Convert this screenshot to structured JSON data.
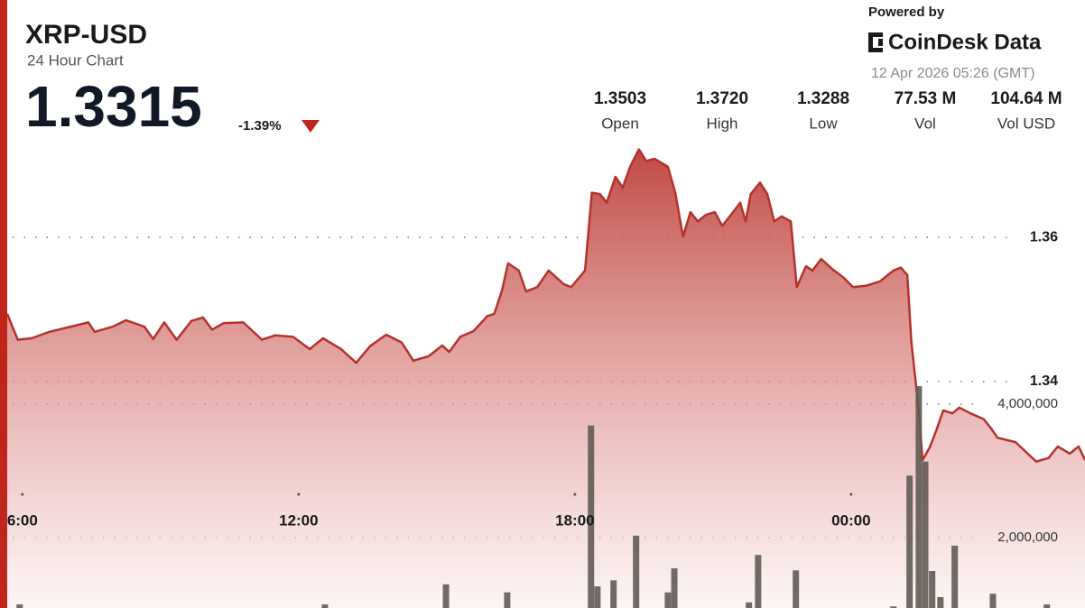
{
  "header": {
    "title": "XRP-USD",
    "subtitle": "24 Hour Chart",
    "price": "1.3315",
    "change": "-1.39%",
    "powered_by": "Powered by",
    "brand": "CoinDesk Data",
    "timestamp": "12 Apr 2026 05:26 (GMT)",
    "stats": [
      {
        "value": "1.3503",
        "label": "Open"
      },
      {
        "value": "1.3720",
        "label": "High"
      },
      {
        "value": "1.3288",
        "label": "Low"
      },
      {
        "value": "77.53 M",
        "label": "Vol"
      },
      {
        "value": "104.64 M",
        "label": "Vol USD"
      }
    ]
  },
  "chart_data": {
    "type": "area",
    "xlim": [
      5.67,
      29.08
    ],
    "xticks": [
      {
        "value": 6,
        "label": "6:00"
      },
      {
        "value": 12,
        "label": "12:00"
      },
      {
        "value": 18,
        "label": "18:00"
      },
      {
        "value": 24,
        "label": "00:00"
      }
    ],
    "ylim": [
      1.3086,
      1.3729
    ],
    "yticks": [
      1.36,
      1.34
    ],
    "y2lim": [
      945946,
      7891892
    ],
    "y2ticks": [
      {
        "value": 4000000,
        "label": "4,000,000"
      },
      {
        "value": 2000000,
        "label": "2,000,000"
      }
    ],
    "grid": true,
    "series": [
      {
        "type": "area",
        "color": "#b5312c",
        "x": [
          5.67,
          5.9,
          6.2,
          6.59,
          6.98,
          7.43,
          7.57,
          7.96,
          8.25,
          8.65,
          8.84,
          9.08,
          9.35,
          9.67,
          9.92,
          10.12,
          10.37,
          10.8,
          11.2,
          11.49,
          11.88,
          12.24,
          12.53,
          12.92,
          13.25,
          13.55,
          13.9,
          14.24,
          14.49,
          14.82,
          15.12,
          15.27,
          15.51,
          15.8,
          16.1,
          16.25,
          16.41,
          16.55,
          16.78,
          16.94,
          17.18,
          17.43,
          17.76,
          17.92,
          18.22,
          18.37,
          18.55,
          18.69,
          18.88,
          19.04,
          19.2,
          19.39,
          19.55,
          19.73,
          20.02,
          20.18,
          20.35,
          20.51,
          20.67,
          20.84,
          21.04,
          21.2,
          21.39,
          21.59,
          21.71,
          21.82,
          22.02,
          22.18,
          22.33,
          22.49,
          22.69,
          22.82,
          23.02,
          23.16,
          23.35,
          23.59,
          23.84,
          24.04,
          24.33,
          24.63,
          24.92,
          25.08,
          25.22,
          25.31,
          25.47,
          25.55,
          25.71,
          25.86,
          26.0,
          26.2,
          26.35,
          26.59,
          26.88,
          27.04,
          27.18,
          27.57,
          28.02,
          28.29,
          28.49,
          28.75,
          28.94,
          29.08
        ],
        "values": [
          1.3494,
          1.3458,
          1.346,
          1.3469,
          1.3475,
          1.3482,
          1.3469,
          1.3476,
          1.3485,
          1.3476,
          1.3459,
          1.3482,
          1.3458,
          1.3484,
          1.3489,
          1.3472,
          1.3481,
          1.3482,
          1.3458,
          1.3464,
          1.3462,
          1.3445,
          1.346,
          1.3445,
          1.3426,
          1.3449,
          1.3465,
          1.3454,
          1.3429,
          1.3435,
          1.345,
          1.3441,
          1.3462,
          1.347,
          1.3491,
          1.3494,
          1.3525,
          1.3564,
          1.3554,
          1.3525,
          1.3531,
          1.3554,
          1.3535,
          1.3531,
          1.3554,
          1.3662,
          1.366,
          1.3648,
          1.3684,
          1.3669,
          1.3698,
          1.3722,
          1.3706,
          1.3709,
          1.3698,
          1.3662,
          1.3601,
          1.3635,
          1.3622,
          1.3631,
          1.3635,
          1.3616,
          1.3631,
          1.3648,
          1.3622,
          1.366,
          1.3676,
          1.366,
          1.3622,
          1.3629,
          1.3622,
          1.3531,
          1.356,
          1.3554,
          1.357,
          1.3556,
          1.3544,
          1.3531,
          1.3533,
          1.3539,
          1.3554,
          1.3558,
          1.3548,
          1.3454,
          1.336,
          1.3291,
          1.3309,
          1.3334,
          1.336,
          1.3356,
          1.3364,
          1.3356,
          1.3348,
          1.3335,
          1.3322,
          1.3316,
          1.3289,
          1.3294,
          1.331,
          1.33,
          1.331,
          1.3291
        ]
      },
      {
        "type": "bar",
        "axis": "y2",
        "color": "#615b55",
        "x": [
          5.94,
          12.57,
          15.2,
          16.53,
          18.35,
          18.49,
          18.84,
          19.33,
          20.02,
          20.16,
          21.78,
          21.98,
          22.8,
          24.92,
          25.27,
          25.47,
          25.61,
          25.76,
          25.94,
          26.25,
          27.08,
          28.25
        ],
        "values": [
          1000000,
          1000000,
          1300000,
          1180000,
          3680000,
          1270000,
          1360000,
          2030000,
          1180000,
          1540000,
          1030000,
          1740000,
          1510000,
          970000,
          2930000,
          4270000,
          3140000,
          1500000,
          1110000,
          1880000,
          1160000,
          1000000
        ]
      }
    ]
  }
}
